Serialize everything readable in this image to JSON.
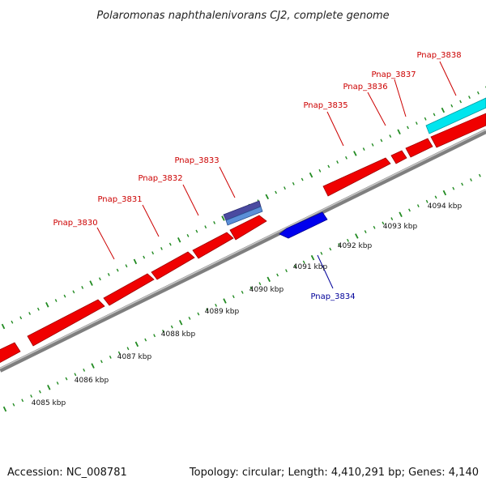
{
  "title": "Polaromonas naphthalenivorans CJ2, complete genome",
  "footer": {
    "accession": "Accession: NC_008781",
    "summary": "Topology: circular; Length: 4,410,291 bp; Genes: 4,140"
  },
  "colors": {
    "forward_gene": "#ff0000",
    "reverse_gene": "#0000ff",
    "forward_label": "#cc0000",
    "reverse_label": "#000099",
    "rna": "#00e5ee",
    "backbone": "#999999",
    "tick": "#228b22"
  },
  "gene_labels": [
    {
      "name": "Pnap_3830",
      "strand": "forward"
    },
    {
      "name": "Pnap_3831",
      "strand": "forward"
    },
    {
      "name": "Pnap_3832",
      "strand": "forward"
    },
    {
      "name": "Pnap_3833",
      "strand": "forward"
    },
    {
      "name": "Pnap_3834",
      "strand": "reverse"
    },
    {
      "name": "Pnap_3835",
      "strand": "forward"
    },
    {
      "name": "Pnap_3836",
      "strand": "forward"
    },
    {
      "name": "Pnap_3837",
      "strand": "forward"
    },
    {
      "name": "Pnap_3838",
      "strand": "forward"
    }
  ],
  "scale_labels": [
    "4085 kbp",
    "4086 kbp",
    "4087 kbp",
    "4088 kbp",
    "4089 kbp",
    "4090 kbp",
    "4091 kbp",
    "4092 kbp",
    "4093 kbp",
    "4094 kbp"
  ]
}
